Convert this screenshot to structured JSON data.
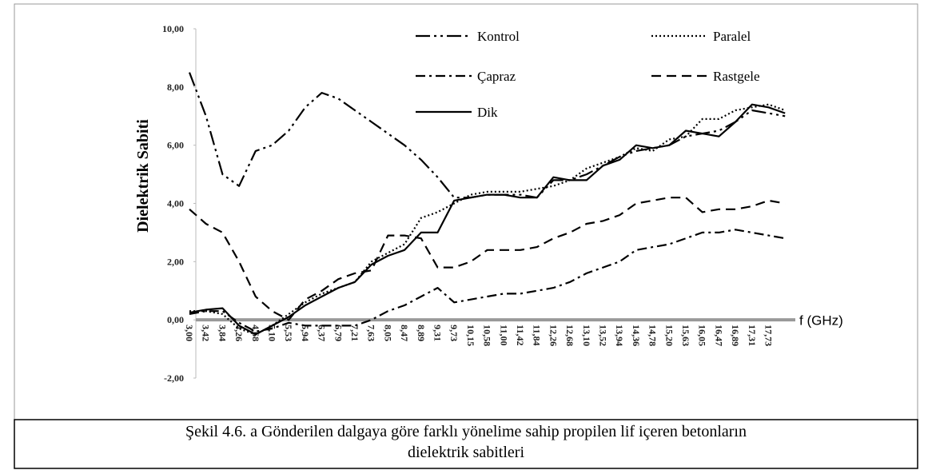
{
  "chart_data": {
    "type": "line",
    "y_label": "Dielektrik Sabiti",
    "x_label": "f (GHz)",
    "caption": [
      "Şekil 4.6. a Gönderilen dalgaya göre farklı yönelime sahip propilen lif içeren betonların",
      "dielektrik sabitleri"
    ],
    "categories": [
      "3,00",
      "3,42",
      "3,84",
      "4,26",
      "4,68",
      "5,10",
      "5,53",
      "5,94",
      "6,37",
      "6,79",
      "7,21",
      "7,63",
      "8,05",
      "8,47",
      "8,89",
      "9,31",
      "9,73",
      "10,15",
      "10,58",
      "11,00",
      "11,42",
      "11,84",
      "12,26",
      "12,68",
      "13,10",
      "13,52",
      "13,94",
      "14,36",
      "14,78",
      "15,20",
      "15,63",
      "16,05",
      "16,47",
      "16,89",
      "17,31",
      "17,73",
      null
    ],
    "ylim": [
      -2,
      10
    ],
    "yticks": [
      {
        "value": -2,
        "label": "-2,00"
      },
      {
        "value": 0,
        "label": "0,00"
      },
      {
        "value": 2,
        "label": "2,00"
      },
      {
        "value": 4,
        "label": "4,00"
      },
      {
        "value": 6,
        "label": "6,00"
      },
      {
        "value": 8,
        "label": "8,00"
      },
      {
        "value": 10,
        "label": "10,00"
      }
    ],
    "series": [
      {
        "name": "Kontrol",
        "color": "#000000",
        "dash": "18,5,3,5,3,5",
        "values": [
          8.5,
          7.0,
          5.0,
          4.6,
          5.8,
          6.0,
          6.5,
          7.3,
          7.8,
          7.6,
          7.2,
          6.8,
          6.4,
          6.0,
          5.5,
          4.9,
          4.2,
          4.2,
          4.3,
          4.3,
          4.3,
          4.2,
          4.8,
          4.8,
          5.0,
          5.3,
          5.6,
          5.8,
          5.9,
          6.0,
          6.3,
          6.4,
          6.5,
          6.8,
          7.2,
          7.1,
          7.0
        ]
      },
      {
        "name": "Paralel",
        "color": "#000000",
        "dash": "2,3",
        "values": [
          0.3,
          0.3,
          0.2,
          -0.3,
          -0.5,
          -0.2,
          0.2,
          0.6,
          0.9,
          1.1,
          1.3,
          2.0,
          2.3,
          2.6,
          3.5,
          3.7,
          4.0,
          4.3,
          4.4,
          4.4,
          4.4,
          4.5,
          4.6,
          4.8,
          5.2,
          5.4,
          5.6,
          5.9,
          5.8,
          6.2,
          6.3,
          6.9,
          6.9,
          7.2,
          7.3,
          7.4,
          7.2
        ]
      },
      {
        "name": "Çapraz",
        "color": "#000000",
        "dash": "12,5,3,5",
        "values": [
          0.2,
          0.3,
          0.3,
          -0.1,
          -0.4,
          -0.3,
          -0.1,
          -0.2,
          -0.2,
          -0.2,
          -0.2,
          0.0,
          0.3,
          0.5,
          0.8,
          1.1,
          0.6,
          0.7,
          0.8,
          0.9,
          0.9,
          1.0,
          1.1,
          1.3,
          1.6,
          1.8,
          2.0,
          2.4,
          2.5,
          2.6,
          2.8,
          3.0,
          3.0,
          3.1,
          3.0,
          2.9,
          2.8
        ]
      },
      {
        "name": "Rastgele",
        "color": "#000000",
        "dash": "12,7",
        "values": [
          3.8,
          3.3,
          3.0,
          2.0,
          0.8,
          0.3,
          0.0,
          0.7,
          1.0,
          1.4,
          1.6,
          1.7,
          2.9,
          2.9,
          2.8,
          1.8,
          1.8,
          2.0,
          2.4,
          2.4,
          2.4,
          2.5,
          2.8,
          3.0,
          3.3,
          3.4,
          3.6,
          4.0,
          4.1,
          4.2,
          4.2,
          3.7,
          3.8,
          3.8,
          3.9,
          4.1,
          4.0
        ]
      },
      {
        "name": "Dik",
        "color": "#000000",
        "dash": "solid",
        "values": [
          0.25,
          0.35,
          0.4,
          -0.2,
          -0.5,
          -0.2,
          0.1,
          0.5,
          0.8,
          1.1,
          1.3,
          1.9,
          2.2,
          2.4,
          3.0,
          3.0,
          4.1,
          4.2,
          4.3,
          4.3,
          4.2,
          4.2,
          4.9,
          4.8,
          4.8,
          5.3,
          5.5,
          6.0,
          5.9,
          6.0,
          6.5,
          6.4,
          6.3,
          6.8,
          7.4,
          7.3,
          7.1
        ]
      }
    ]
  }
}
